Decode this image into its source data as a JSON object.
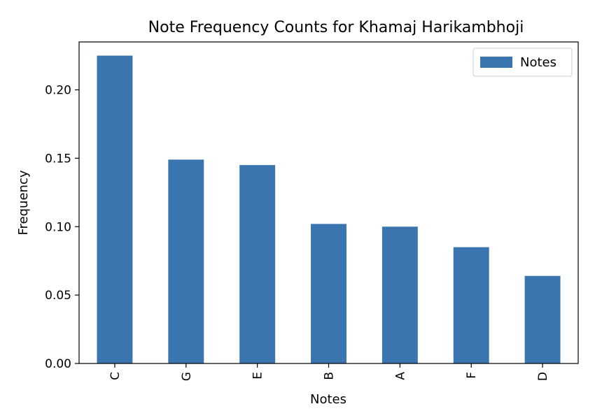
{
  "chart_data": {
    "type": "bar",
    "title": "Note Frequency Counts for Khamaj Harikambhoji",
    "xlabel": "Notes",
    "ylabel": "Frequency",
    "categories": [
      "C",
      "G",
      "E",
      "B",
      "A",
      "F",
      "D"
    ],
    "series": [
      {
        "name": "Notes",
        "values": [
          0.225,
          0.149,
          0.145,
          0.102,
          0.1,
          0.085,
          0.064
        ],
        "color": "#3a75af"
      }
    ],
    "ylim": [
      0,
      0.235
    ],
    "yticks": [
      0.0,
      0.05,
      0.1,
      0.15,
      0.2
    ],
    "ytick_labels": [
      "0.00",
      "0.05",
      "0.10",
      "0.15",
      "0.20"
    ],
    "grid": false,
    "legend": {
      "position": "top-right",
      "entries": [
        "Notes"
      ]
    }
  }
}
